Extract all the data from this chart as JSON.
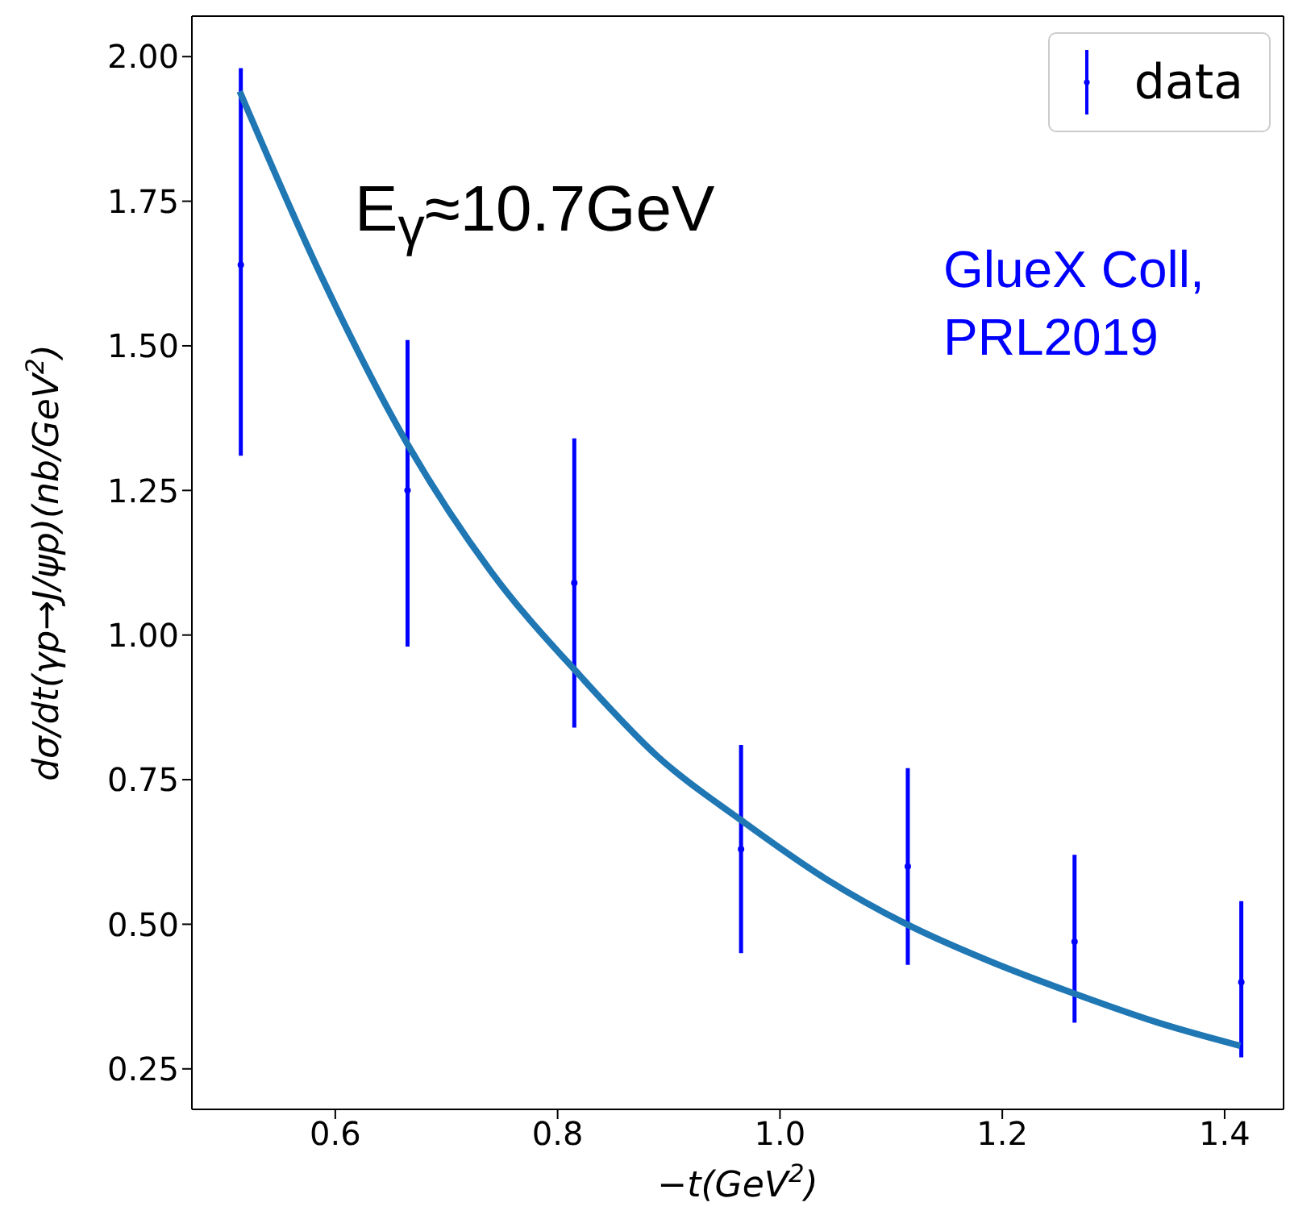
{
  "chart_data": {
    "type": "scatter",
    "xlabel": "−t(GeV$^{2}$)",
    "ylabel": "dσ/dt(γp→J/ψp)(nb/GeV$^{2}$)",
    "annotations": [
      "E$_{γ}$≈10.7GeV",
      "GlueX Coll,\nPRL2019"
    ],
    "xlim": [
      0.471,
      1.453
    ],
    "xticks": [
      {
        "value": 0.6,
        "label": "0.6"
      },
      {
        "value": 0.8,
        "label": "0.8"
      },
      {
        "value": 1.0,
        "label": "1.0"
      },
      {
        "value": 1.2,
        "label": "1.2"
      },
      {
        "value": 1.4,
        "label": "1.4"
      }
    ],
    "ylim": [
      0.18,
      2.07
    ],
    "yticks": [
      {
        "value": 0.25,
        "label": "0.25"
      },
      {
        "value": 0.5,
        "label": "0.50"
      },
      {
        "value": 0.75,
        "label": "0.75"
      },
      {
        "value": 1.0,
        "label": "1.00"
      },
      {
        "value": 1.25,
        "label": "1.25"
      },
      {
        "value": 1.5,
        "label": "1.50"
      },
      {
        "value": 1.75,
        "label": "1.75"
      },
      {
        "value": 2.0,
        "label": "2.00"
      }
    ],
    "legend": "top right",
    "series": [
      {
        "name": "data",
        "marker": "circle",
        "color": "#0000ff",
        "x": [
          0.515,
          0.665,
          0.815,
          0.965,
          1.115,
          1.265,
          1.415
        ],
        "values": [
          1.64,
          1.25,
          1.09,
          0.63,
          0.6,
          0.47,
          0.4
        ],
        "errors": [
          [
            1.31,
            1.98
          ],
          [
            0.98,
            1.51
          ],
          [
            0.84,
            1.34
          ],
          [
            0.45,
            0.81
          ],
          [
            0.43,
            0.77
          ],
          [
            0.33,
            0.62
          ],
          [
            0.27,
            0.54
          ]
        ]
      },
      {
        "type": "line",
        "color": "#1f77b4",
        "line_style": "solid",
        "x": [
          0.514,
          0.59,
          0.665,
          0.74,
          0.82,
          0.89,
          0.965,
          1.04,
          1.114,
          1.19,
          1.265,
          1.34,
          1.414
        ],
        "values": [
          1.94,
          1.61,
          1.33,
          1.11,
          0.93,
          0.79,
          0.68,
          0.58,
          0.5,
          0.435,
          0.38,
          0.33,
          0.29
        ]
      }
    ]
  }
}
